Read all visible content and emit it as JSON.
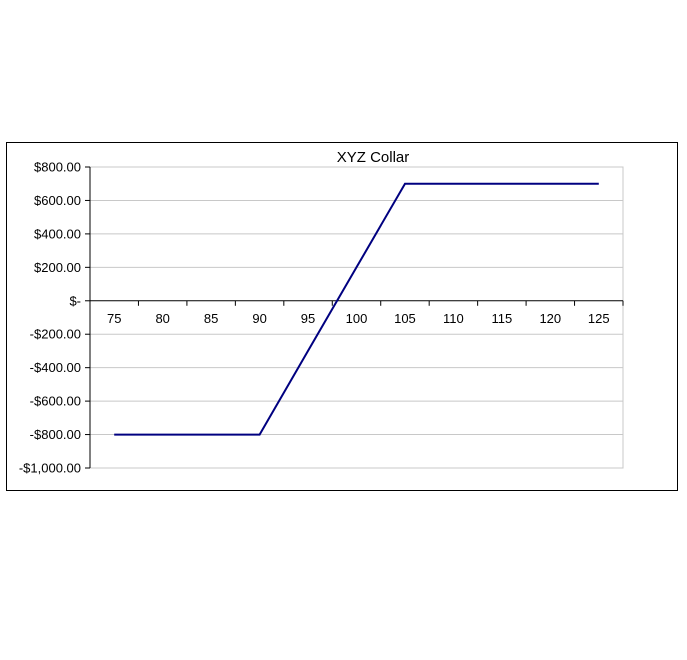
{
  "chart_data": {
    "type": "line",
    "title": "XYZ Collar",
    "xlabel": "",
    "ylabel": "",
    "x_ticks": [
      "75",
      "80",
      "85",
      "90",
      "95",
      "100",
      "105",
      "110",
      "115",
      "120",
      "125"
    ],
    "y_ticks": [
      {
        "value": 800,
        "label": "$800.00"
      },
      {
        "value": 600,
        "label": "$600.00"
      },
      {
        "value": 400,
        "label": "$400.00"
      },
      {
        "value": 200,
        "label": "$200.00"
      },
      {
        "value": 0,
        "label": "$-"
      },
      {
        "value": -200,
        "label": "-$200.00"
      },
      {
        "value": -400,
        "label": "-$400.00"
      },
      {
        "value": -600,
        "label": "-$600.00"
      },
      {
        "value": -800,
        "label": "-$800.00"
      },
      {
        "value": -1000,
        "label": "-$1,000.00"
      }
    ],
    "ylim": [
      -1000,
      800
    ],
    "grid": true,
    "legend": "none",
    "series": [
      {
        "color": "#000080",
        "x": [
          75,
          80,
          85,
          90,
          95,
          100,
          105,
          110,
          115,
          120,
          125
        ],
        "y": [
          -800,
          -800,
          -800,
          -800,
          -300,
          200,
          700,
          700,
          700,
          700,
          700
        ]
      }
    ]
  }
}
